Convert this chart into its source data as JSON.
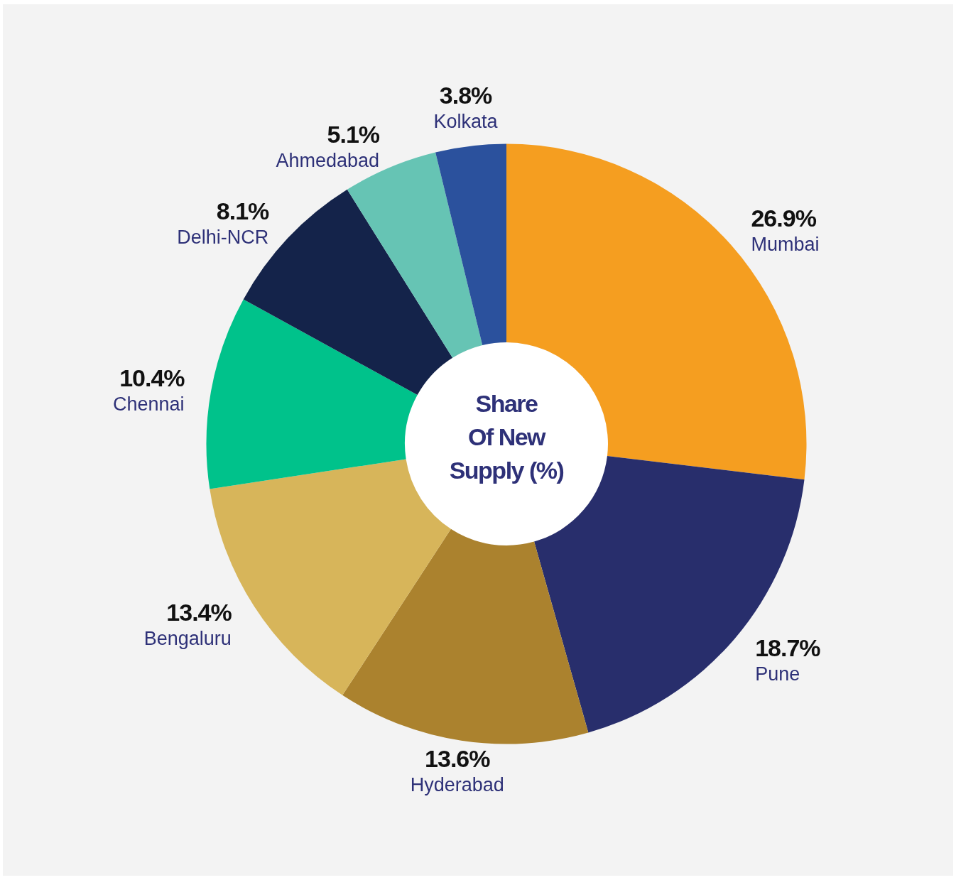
{
  "chart_data": {
    "type": "donut",
    "title": "Share Of New Supply (%)",
    "categories": [
      "Mumbai",
      "Pune",
      "Hyderabad",
      "Bengaluru",
      "Chennai",
      "Delhi-NCR",
      "Ahmedabad",
      "Kolkata"
    ],
    "values": [
      26.9,
      18.7,
      13.6,
      13.4,
      10.4,
      8.1,
      5.1,
      3.8
    ],
    "value_labels": [
      "26.9%",
      "18.7%",
      "13.6%",
      "13.4%",
      "10.4%",
      "8.1%",
      "5.1%",
      "3.8%"
    ],
    "colors": [
      "#f59e20",
      "#282e6c",
      "#ab822e",
      "#d7b55a",
      "#00c28b",
      "#14234a",
      "#66c4b4",
      "#2b519d"
    ]
  }
}
